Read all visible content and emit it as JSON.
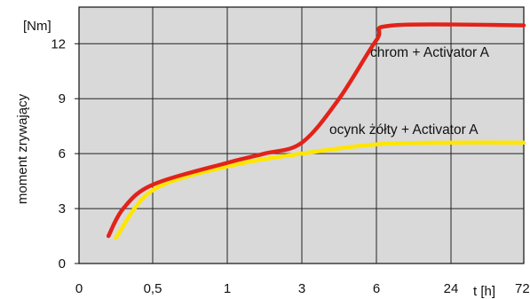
{
  "chart_data": {
    "type": "line",
    "title": "",
    "xlabel": "t [h]",
    "ylabel": "moment zrywający",
    "y_unit": "[Nm]",
    "x_ticks": [
      "0",
      "0,5",
      "1",
      "3",
      "6",
      "24",
      "72"
    ],
    "x_scale": "categorical (non-linear time)",
    "ylim": [
      0,
      14
    ],
    "y_ticks": [
      "0",
      "3",
      "6",
      "9",
      "12"
    ],
    "grid": true,
    "background_color": "#d9d9d9",
    "series": [
      {
        "name": "chrom + Activator A",
        "color": "#e2231a",
        "points": [
          {
            "x": "0,2 h",
            "y": 1.5
          },
          {
            "x": "0,3 h",
            "y": 3.0
          },
          {
            "x": "0,5 h",
            "y": 4.3
          },
          {
            "x": "1 h",
            "y": 5.5
          },
          {
            "x": "2 h",
            "y": 6.0
          },
          {
            "x": "3 h",
            "y": 6.6
          },
          {
            "x": "4,5 h",
            "y": 9.0
          },
          {
            "x": "6 h",
            "y": 12.2
          },
          {
            "x": "10 h",
            "y": 13.0
          },
          {
            "x": "72 h",
            "y": 13.0
          }
        ]
      },
      {
        "name": "ocynk żółty + Activator A",
        "color": "#ffe600",
        "points": [
          {
            "x": "0,25 h",
            "y": 1.4
          },
          {
            "x": "0,5 h",
            "y": 4.0
          },
          {
            "x": "1 h",
            "y": 5.3
          },
          {
            "x": "3 h",
            "y": 6.0
          },
          {
            "x": "6 h",
            "y": 6.5
          },
          {
            "x": "24 h",
            "y": 6.6
          },
          {
            "x": "72 h",
            "y": 6.6
          }
        ]
      }
    ]
  }
}
